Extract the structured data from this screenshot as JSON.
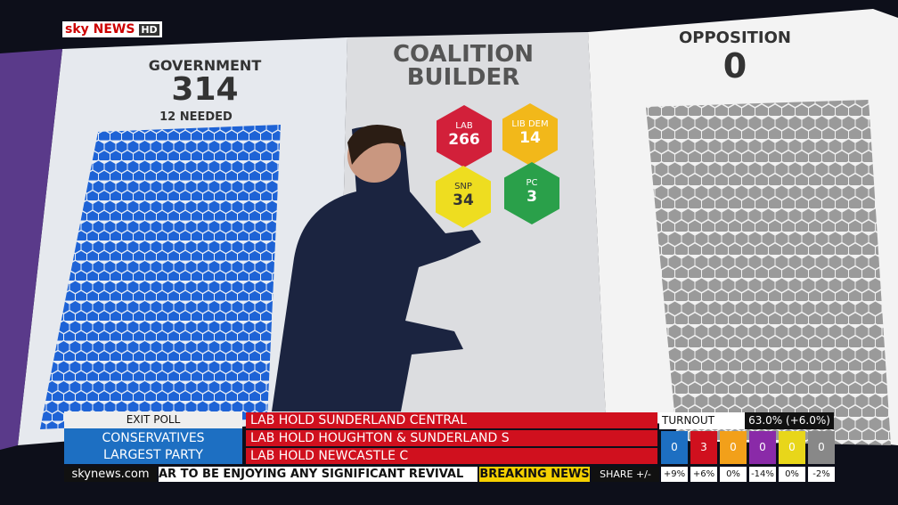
{
  "logo": {
    "sky": "sky",
    "news": "NEWS",
    "hd": "HD"
  },
  "wall": {
    "government": {
      "label": "GOVERNMENT",
      "seats": "314",
      "needed": "12 NEEDED"
    },
    "builder": {
      "title": "COALITION",
      "subtitle": "BUILDER"
    },
    "opposition": {
      "label": "OPPOSITION",
      "seats": "0"
    },
    "parties": [
      {
        "name": "LAB",
        "seats": "266"
      },
      {
        "name": "LIB DEM",
        "seats": "14"
      },
      {
        "name": "SNP",
        "seats": "34"
      },
      {
        "name": "PC",
        "seats": "3"
      }
    ]
  },
  "lower_third": {
    "exit_poll": {
      "label": "EXIT POLL",
      "line1": "CONSERVATIVES",
      "line2": "LARGEST PARTY"
    },
    "headlines": [
      "LAB HOLD SUNDERLAND CENTRAL",
      "LAB HOLD HOUGHTON & SUNDERLAND S",
      "LAB HOLD NEWCASTLE C"
    ],
    "turnout": {
      "label": "TURNOUT",
      "value": "63.0% (+6.0%)"
    },
    "seat_changes": [
      "0",
      "3",
      "0",
      "0",
      "0",
      "0"
    ],
    "share_label": "SHARE +/-",
    "shares": [
      "+9%",
      "+6%",
      "0%",
      "-14%",
      "0%",
      "-2%"
    ],
    "website": "skynews.com",
    "ticker": "AR TO BE ENJOYING ANY SIGNIFICANT REVIVAL",
    "breaking": "BREAKING NEWS"
  }
}
